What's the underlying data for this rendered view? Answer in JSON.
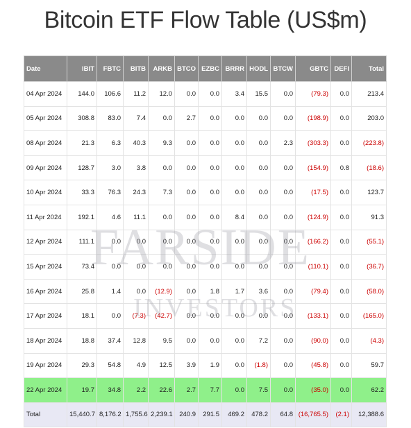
{
  "title": "Bitcoin ETF Flow Table (US$m)",
  "watermark": {
    "line1": "FARSIDE",
    "line2": "INVESTORS"
  },
  "columns": [
    "Date",
    "IBIT",
    "FBTC",
    "BITB",
    "ARKB",
    "BTCO",
    "EZBC",
    "BRRR",
    "HODL",
    "BTCW",
    "GBTC",
    "DEFI",
    "Total"
  ],
  "rows": [
    [
      "04 Apr 2024",
      "144.0",
      "106.6",
      "11.2",
      "12.0",
      "0.0",
      "0.0",
      "3.4",
      "15.5",
      "0.0",
      "(79.3)",
      "0.0",
      "213.4"
    ],
    [
      "05 Apr 2024",
      "308.8",
      "83.0",
      "7.4",
      "0.0",
      "2.7",
      "0.0",
      "0.0",
      "0.0",
      "0.0",
      "(198.9)",
      "0.0",
      "203.0"
    ],
    [
      "08 Apr 2024",
      "21.3",
      "6.3",
      "40.3",
      "9.3",
      "0.0",
      "0.0",
      "0.0",
      "0.0",
      "2.3",
      "(303.3)",
      "0.0",
      "(223.8)"
    ],
    [
      "09 Apr 2024",
      "128.7",
      "3.0",
      "3.8",
      "0.0",
      "0.0",
      "0.0",
      "0.0",
      "0.0",
      "0.0",
      "(154.9)",
      "0.8",
      "(18.6)"
    ],
    [
      "10 Apr 2024",
      "33.3",
      "76.3",
      "24.3",
      "7.3",
      "0.0",
      "0.0",
      "0.0",
      "0.0",
      "0.0",
      "(17.5)",
      "0.0",
      "123.7"
    ],
    [
      "11 Apr 2024",
      "192.1",
      "4.6",
      "11.1",
      "0.0",
      "0.0",
      "0.0",
      "8.4",
      "0.0",
      "0.0",
      "(124.9)",
      "0.0",
      "91.3"
    ],
    [
      "12 Apr 2024",
      "111.1",
      "0.0",
      "0.0",
      "0.0",
      "0.0",
      "0.0",
      "0.0",
      "0.0",
      "0.0",
      "(166.2)",
      "0.0",
      "(55.1)"
    ],
    [
      "15 Apr 2024",
      "73.4",
      "0.0",
      "0.0",
      "0.0",
      "0.0",
      "0.0",
      "0.0",
      "0.0",
      "0.0",
      "(110.1)",
      "0.0",
      "(36.7)"
    ],
    [
      "16 Apr 2024",
      "25.8",
      "1.4",
      "0.0",
      "(12.9)",
      "0.0",
      "1.8",
      "1.7",
      "3.6",
      "0.0",
      "(79.4)",
      "0.0",
      "(58.0)"
    ],
    [
      "17 Apr 2024",
      "18.1",
      "0.0",
      "(7.3)",
      "(42.7)",
      "0.0",
      "0.0",
      "0.0",
      "0.0",
      "0.0",
      "(133.1)",
      "0.0",
      "(165.0)"
    ],
    [
      "18 Apr 2024",
      "18.8",
      "37.4",
      "12.8",
      "9.5",
      "0.0",
      "0.0",
      "0.0",
      "7.2",
      "0.0",
      "(90.0)",
      "0.0",
      "(4.3)"
    ],
    [
      "19 Apr 2024",
      "29.3",
      "54.8",
      "4.9",
      "12.5",
      "3.9",
      "1.9",
      "0.0",
      "(1.8)",
      "0.0",
      "(45.8)",
      "0.0",
      "59.7"
    ],
    [
      "22 Apr 2024",
      "19.7",
      "34.8",
      "2.2",
      "22.6",
      "2.7",
      "7.7",
      "0.0",
      "7.5",
      "0.0",
      "(35.0)",
      "0.0",
      "62.2"
    ]
  ],
  "highlighted_row": "22 Apr 2024",
  "total_row": [
    "Total",
    "15,440.7",
    "8,176.2",
    "1,755.6",
    "2,239.1",
    "240.9",
    "291.5",
    "469.2",
    "478.2",
    "64.8",
    "(16,765.5)",
    "(2.1)",
    "12,388.6"
  ],
  "colors": {
    "header_bg": "#8a8a8a",
    "negative": "#cc0000",
    "highlight": "#8ff08a",
    "total_bg": "#e8e8f4"
  }
}
